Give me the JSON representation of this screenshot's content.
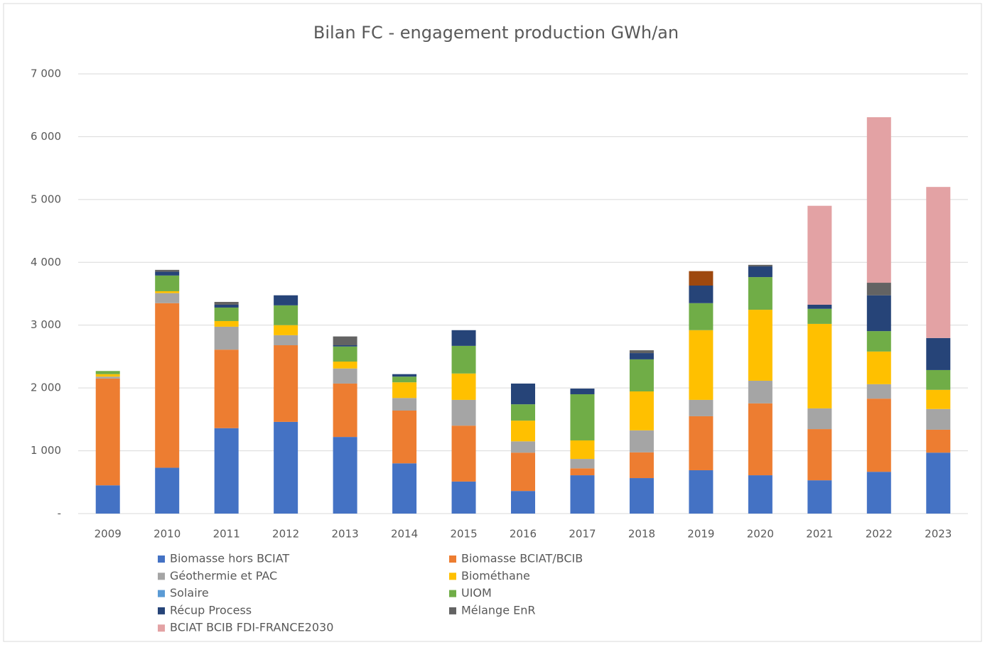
{
  "chart_data": {
    "type": "bar",
    "stacked": true,
    "title": "Bilan FC - engagement production GWh/an",
    "categories": [
      "2009",
      "2010",
      "2011",
      "2012",
      "2013",
      "2014",
      "2015",
      "2016",
      "2017",
      "2018",
      "2019",
      "2020",
      "2021",
      "2022",
      "2023"
    ],
    "series": [
      {
        "name": "Biomasse hors BCIAT",
        "color": "#4472c4",
        "values": [
          450,
          730,
          1360,
          1460,
          1220,
          800,
          510,
          360,
          610,
          565,
          690,
          610,
          530,
          665,
          970
        ]
      },
      {
        "name": "Biomasse BCIAT/BCIB",
        "color": "#ed7d31",
        "values": [
          1700,
          2620,
          1250,
          1220,
          850,
          840,
          890,
          610,
          110,
          410,
          860,
          1145,
          815,
          1165,
          365
        ]
      },
      {
        "name": "Géothermie et PAC",
        "color": "#a5a5a5",
        "values": [
          30,
          160,
          365,
          160,
          240,
          200,
          410,
          180,
          150,
          350,
          260,
          360,
          330,
          230,
          330
        ]
      },
      {
        "name": "Biométhane",
        "color": "#ffc000",
        "values": [
          40,
          30,
          90,
          160,
          110,
          250,
          420,
          330,
          295,
          620,
          1110,
          1130,
          1345,
          520,
          305
        ]
      },
      {
        "name": "Solaire",
        "color": "#5b9bd5",
        "values": [
          0,
          0,
          0,
          0,
          0,
          0,
          0,
          0,
          0,
          0,
          0,
          0,
          0,
          0,
          0
        ]
      },
      {
        "name": "UIOM",
        "color": "#70ad47",
        "values": [
          50,
          250,
          215,
          315,
          240,
          90,
          440,
          260,
          735,
          510,
          430,
          520,
          240,
          325,
          315
        ]
      },
      {
        "name": "Récup Process",
        "color": "#264478",
        "values": [
          0,
          60,
          45,
          160,
          20,
          40,
          250,
          330,
          90,
          100,
          280,
          170,
          65,
          570,
          510
        ]
      },
      {
        "name": "Mélange EnR",
        "color": "#636363",
        "values": [
          0,
          30,
          45,
          0,
          140,
          0,
          0,
          0,
          0,
          45,
          0,
          25,
          0,
          200,
          0
        ]
      },
      {
        "name": "BCIAT BCIB FDI-FRANCE2030",
        "color": "#e3a2a4",
        "values": [
          0,
          0,
          0,
          0,
          0,
          0,
          0,
          0,
          0,
          0,
          0,
          0,
          1575,
          2635,
          2405
        ]
      },
      {
        "color": "#9e480e",
        "values": [
          0,
          0,
          0,
          0,
          0,
          0,
          0,
          0,
          0,
          0,
          230,
          0,
          0,
          0,
          0
        ]
      }
    ],
    "ylim": [
      0,
      7000
    ],
    "yticks": [
      {
        "value": 0,
        "label": "-"
      },
      {
        "value": 1000,
        "label": "1 000"
      },
      {
        "value": 2000,
        "label": "2 000"
      },
      {
        "value": 3000,
        "label": "3 000"
      },
      {
        "value": 4000,
        "label": "4 000"
      },
      {
        "value": 5000,
        "label": "5 000"
      },
      {
        "value": 6000,
        "label": "6 000"
      },
      {
        "value": 7000,
        "label": "7 000"
      }
    ],
    "grid": true,
    "legend": "bottom"
  }
}
